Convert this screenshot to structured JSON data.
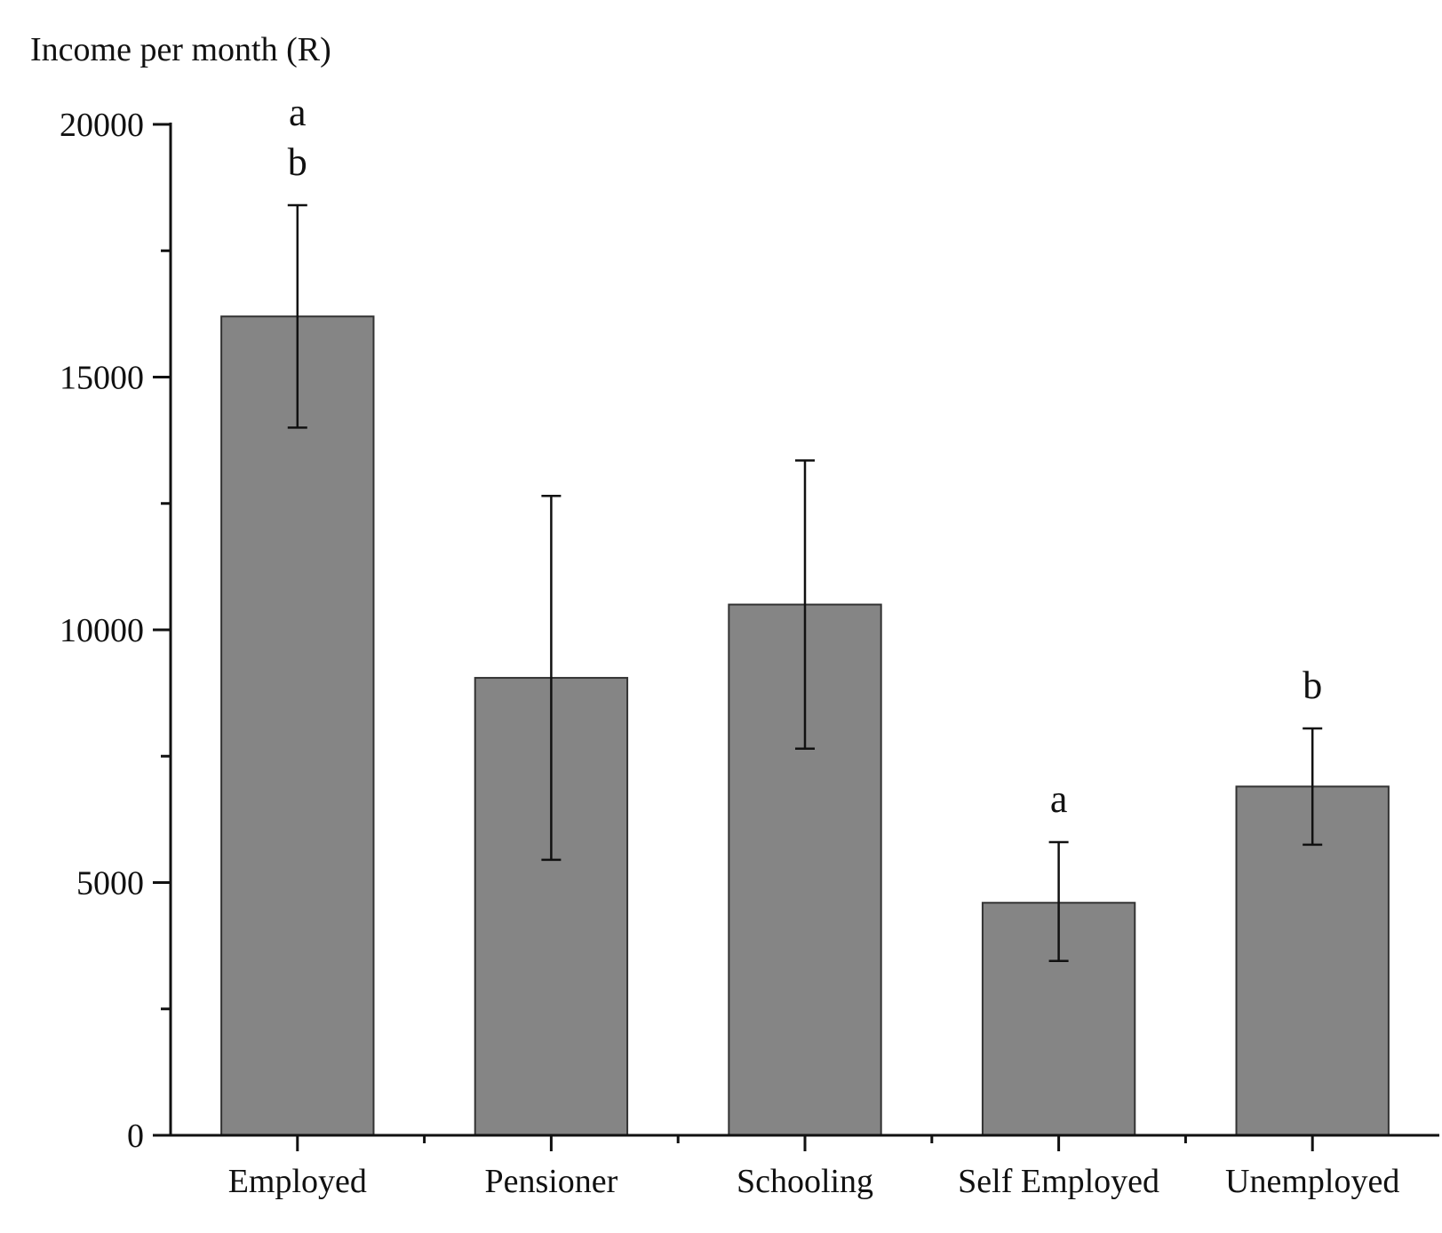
{
  "chart_data": {
    "type": "bar",
    "title": "",
    "xlabel": "",
    "ylabel": "Income per month (R)",
    "ylim": [
      0,
      20000
    ],
    "y_major_ticks": [
      0,
      5000,
      10000,
      15000,
      20000
    ],
    "y_tick_labels": [
      "0",
      "5000",
      "10000",
      "15000",
      "20000"
    ],
    "y_minor_ticks": [
      2500,
      7500,
      12500,
      17500
    ],
    "grid": false,
    "legend": "none",
    "categories": [
      "Employed",
      "Pensioner",
      "Schooling",
      "Self Employed",
      "Unemployed"
    ],
    "values": [
      16200,
      9050,
      10500,
      4600,
      6900
    ],
    "error_low": [
      14000,
      5450,
      7650,
      3450,
      5750
    ],
    "error_high": [
      18400,
      12650,
      13350,
      5800,
      8050
    ],
    "significance_letters": [
      [
        "a",
        "b"
      ],
      [],
      [],
      [
        "a"
      ],
      [
        "b"
      ]
    ],
    "bar_color": "#858585",
    "bar_edge_color": "#333333"
  }
}
